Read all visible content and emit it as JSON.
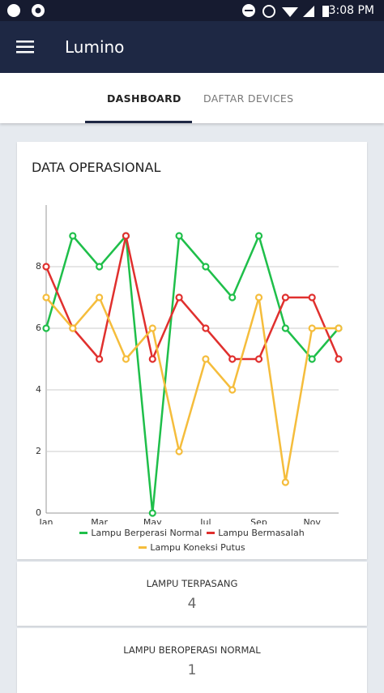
{
  "status_bar": {
    "time": "3:08 PM"
  },
  "app_bar": {
    "title": "Lumino"
  },
  "tabs": [
    "DASHBOARD",
    "DAFTAR DEVICES"
  ],
  "chart_data": {
    "type": "line",
    "title": "DATA OPERASIONAL",
    "categories": [
      "Jan",
      null,
      "Mar",
      null,
      "May",
      null,
      "Jul",
      null,
      "Sep",
      null,
      "Nov",
      null
    ],
    "series": [
      {
        "name": "Lampu Berperasi Normal",
        "color": "#1fbf4a",
        "values": [
          6,
          9,
          8,
          9,
          0,
          9,
          8,
          7,
          9,
          6,
          5,
          6
        ]
      },
      {
        "name": "Lampu Bermasalah",
        "color": "#e0302e",
        "values": [
          8,
          6,
          5,
          9,
          5,
          7,
          6,
          5,
          5,
          7,
          7,
          5
        ]
      },
      {
        "name": "Lampu Koneksi Putus",
        "color": "#f5bd3c",
        "values": [
          7,
          6,
          7,
          5,
          6,
          2,
          5,
          4,
          7,
          1,
          6,
          6
        ]
      }
    ],
    "ylim": [
      0,
      10
    ],
    "yticks": [
      0,
      2,
      4,
      6,
      8
    ],
    "grid": true
  },
  "stats": [
    {
      "label": "LAMPU TERPASANG",
      "value": 4
    },
    {
      "label": "LAMPU BEROPERASI NORMAL",
      "value": 1
    }
  ]
}
